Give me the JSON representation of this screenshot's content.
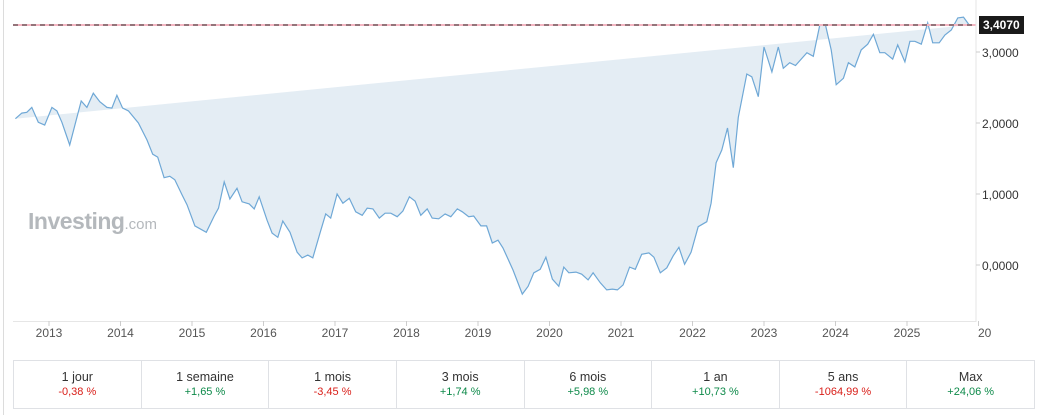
{
  "chart": {
    "last_price_label": "3,4070",
    "watermark_brand": "Investing",
    "watermark_suffix": ".com",
    "y_axis_labels": [
      {
        "label": "3,0000",
        "value": 3
      },
      {
        "label": "2,0000",
        "value": 2
      },
      {
        "label": "1,0000",
        "value": 1
      },
      {
        "label": "0,0000",
        "value": 0
      }
    ],
    "x_axis_labels": [
      "2013",
      "2014",
      "2015",
      "2016",
      "2017",
      "2018",
      "2019",
      "2020",
      "2021",
      "2022",
      "2023",
      "2024",
      "2025",
      "20"
    ],
    "colors": {
      "line": "#6fa8d6",
      "fill": "#e4edf4",
      "reference_line": "#333333",
      "reference_line_highlight": "#f4b6c2",
      "last_price_bg": "#1a1a1a"
    }
  },
  "chart_data": {
    "type": "area",
    "title": "",
    "xlabel": "",
    "ylabel": "",
    "ylim": [
      -0.8,
      3.6
    ],
    "xlim": [
      2012.53,
      2026.0
    ],
    "grid": false,
    "legend": "none",
    "reference_line": {
      "value": 3.407,
      "label": "3,4070",
      "style": "dashed"
    },
    "x": [
      2012.53,
      2012.62,
      2012.69,
      2012.76,
      2012.85,
      2012.94,
      2013.04,
      2013.11,
      2013.18,
      2013.29,
      2013.45,
      2013.53,
      2013.62,
      2013.71,
      2013.81,
      2013.88,
      2013.95,
      2014.03,
      2014.11,
      2014.25,
      2014.37,
      2014.45,
      2014.52,
      2014.61,
      2014.69,
      2014.76,
      2014.86,
      2014.93,
      2015.04,
      2015.2,
      2015.31,
      2015.37,
      2015.45,
      2015.53,
      2015.63,
      2015.7,
      2015.8,
      2015.87,
      2015.94,
      2016.05,
      2016.12,
      2016.2,
      2016.27,
      2016.37,
      2016.47,
      2016.54,
      2016.62,
      2016.69,
      2016.79,
      2016.87,
      2016.94,
      2017.03,
      2017.11,
      2017.2,
      2017.29,
      2017.38,
      2017.45,
      2017.53,
      2017.62,
      2017.7,
      2017.78,
      2017.87,
      2017.95,
      2018.04,
      2018.12,
      2018.2,
      2018.29,
      2018.36,
      2018.45,
      2018.54,
      2018.62,
      2018.71,
      2018.78,
      2018.87,
      2018.94,
      2019.04,
      2019.12,
      2019.2,
      2019.28,
      2019.35,
      2019.49,
      2019.62,
      2019.7,
      2019.78,
      2019.87,
      2019.95,
      2020.04,
      2020.13,
      2020.2,
      2020.27,
      2020.37,
      2020.45,
      2020.54,
      2020.61,
      2020.71,
      2020.8,
      2020.88,
      2020.95,
      2021.03,
      2021.12,
      2021.2,
      2021.29,
      2021.39,
      2021.46,
      2021.55,
      2021.64,
      2021.73,
      2021.81,
      2021.89,
      2021.98,
      2022.08,
      2022.2,
      2022.26,
      2022.33,
      2022.41,
      2022.49,
      2022.57,
      2022.64,
      2022.76,
      2022.83,
      2022.92,
      2023.0,
      2023.11,
      2023.2,
      2023.27,
      2023.36,
      2023.44,
      2023.52,
      2023.6,
      2023.69,
      2023.78,
      2023.86,
      2023.94,
      2024.01,
      2024.11,
      2024.18,
      2024.27,
      2024.36,
      2024.45,
      2024.53,
      2024.62,
      2024.69,
      2024.8,
      2024.87,
      2024.97,
      2025.04,
      2025.11,
      2025.2,
      2025.29,
      2025.36,
      2025.45,
      2025.53,
      2025.62,
      2025.71,
      2025.79,
      2025.87,
      2025.96
    ],
    "values": [
      2.06,
      2.14,
      2.15,
      2.22,
      2.01,
      1.97,
      2.22,
      2.17,
      2.01,
      1.69,
      2.31,
      2.22,
      2.42,
      2.3,
      2.22,
      2.21,
      2.39,
      2.21,
      2.17,
      2.0,
      1.76,
      1.56,
      1.52,
      1.23,
      1.25,
      1.2,
      0.99,
      0.85,
      0.55,
      0.46,
      0.69,
      0.8,
      1.17,
      0.93,
      1.08,
      0.89,
      0.86,
      0.79,
      0.96,
      0.63,
      0.45,
      0.39,
      0.62,
      0.46,
      0.18,
      0.1,
      0.14,
      0.1,
      0.45,
      0.72,
      0.66,
      1.0,
      0.87,
      0.94,
      0.75,
      0.7,
      0.8,
      0.79,
      0.66,
      0.73,
      0.73,
      0.68,
      0.76,
      0.96,
      0.9,
      0.7,
      0.79,
      0.66,
      0.65,
      0.72,
      0.68,
      0.79,
      0.75,
      0.68,
      0.69,
      0.55,
      0.55,
      0.31,
      0.35,
      0.24,
      -0.07,
      -0.41,
      -0.3,
      -0.11,
      -0.06,
      0.11,
      -0.2,
      -0.3,
      -0.03,
      -0.11,
      -0.1,
      -0.13,
      -0.21,
      -0.11,
      -0.25,
      -0.35,
      -0.34,
      -0.35,
      -0.28,
      -0.03,
      -0.06,
      0.15,
      0.17,
      0.11,
      -0.11,
      -0.04,
      0.13,
      0.25,
      0.01,
      0.18,
      0.54,
      0.61,
      0.87,
      1.44,
      1.62,
      1.93,
      1.37,
      2.08,
      2.69,
      2.65,
      2.37,
      3.07,
      2.72,
      3.07,
      2.77,
      2.85,
      2.81,
      2.9,
      2.99,
      2.94,
      3.38,
      3.38,
      3.03,
      2.54,
      2.63,
      2.85,
      2.79,
      3.03,
      3.11,
      3.25,
      2.99,
      2.99,
      2.9,
      3.1,
      2.86,
      3.15,
      3.15,
      3.11,
      3.41,
      3.13,
      3.13,
      3.24,
      3.31,
      3.48,
      3.49,
      3.38
    ]
  },
  "performance": [
    {
      "period": "1 jour",
      "change": "-0,38 %",
      "direction": "negative"
    },
    {
      "period": "1 semaine",
      "change": "+1,65 %",
      "direction": "positive"
    },
    {
      "period": "1 mois",
      "change": "-3,45 %",
      "direction": "negative"
    },
    {
      "period": "3 mois",
      "change": "+1,74 %",
      "direction": "positive"
    },
    {
      "period": "6 mois",
      "change": "+5,98 %",
      "direction": "positive"
    },
    {
      "period": "1 an",
      "change": "+10,73 %",
      "direction": "positive"
    },
    {
      "period": "5 ans",
      "change": "-1064,99 %",
      "direction": "negative"
    },
    {
      "period": "Max",
      "change": "+24,06 %",
      "direction": "positive"
    }
  ]
}
